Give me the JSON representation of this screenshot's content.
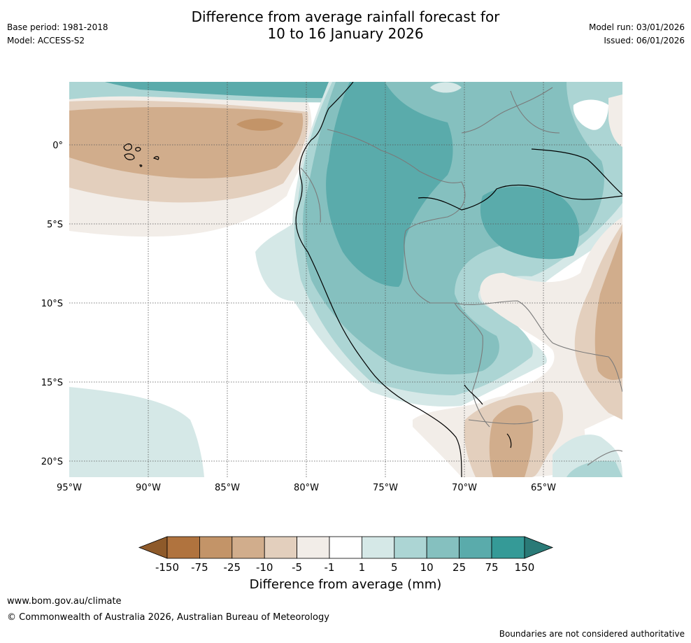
{
  "header": {
    "title_line1": "Difference from average rainfall forecast for",
    "title_line2": "10 to 16 January 2026",
    "base_period": "Base period: 1981-2018",
    "model": "Model: ACCESS-S2",
    "model_run": "Model run: 03/01/2026",
    "issued": "Issued: 06/01/2026"
  },
  "map": {
    "lon_ticks": [
      "95°W",
      "90°W",
      "85°W",
      "80°W",
      "75°W",
      "70°W",
      "65°W"
    ],
    "lat_ticks": [
      "0°",
      "5°S",
      "10°S",
      "15°S",
      "20°S"
    ],
    "colors": {
      "c_150n": "#8e5a2a",
      "c_75n": "#b0733e",
      "c_25n": "#c39468",
      "c_10n": "#d1ad8c",
      "c_5n": "#e3cfbd",
      "c_1n": "#f2ede8",
      "c_0": "#ffffff",
      "c_1p": "#d5e8e7",
      "c_5p": "#acd5d4",
      "c_10p": "#85c0bf",
      "c_25p": "#5aabab",
      "c_75p": "#359a97",
      "c_150p": "#2a7a77"
    }
  },
  "colorbar": {
    "labels": [
      "-150",
      "-75",
      "-25",
      "-10",
      "-5",
      "-1",
      "1",
      "5",
      "10",
      "25",
      "75",
      "150"
    ],
    "title": "Difference from average (mm)"
  },
  "footer": {
    "url": "www.bom.gov.au/climate",
    "copyright": "© Commonwealth of Australia 2026, Australian Bureau of Meteorology",
    "disclaimer": "Boundaries are not considered authoritative"
  }
}
